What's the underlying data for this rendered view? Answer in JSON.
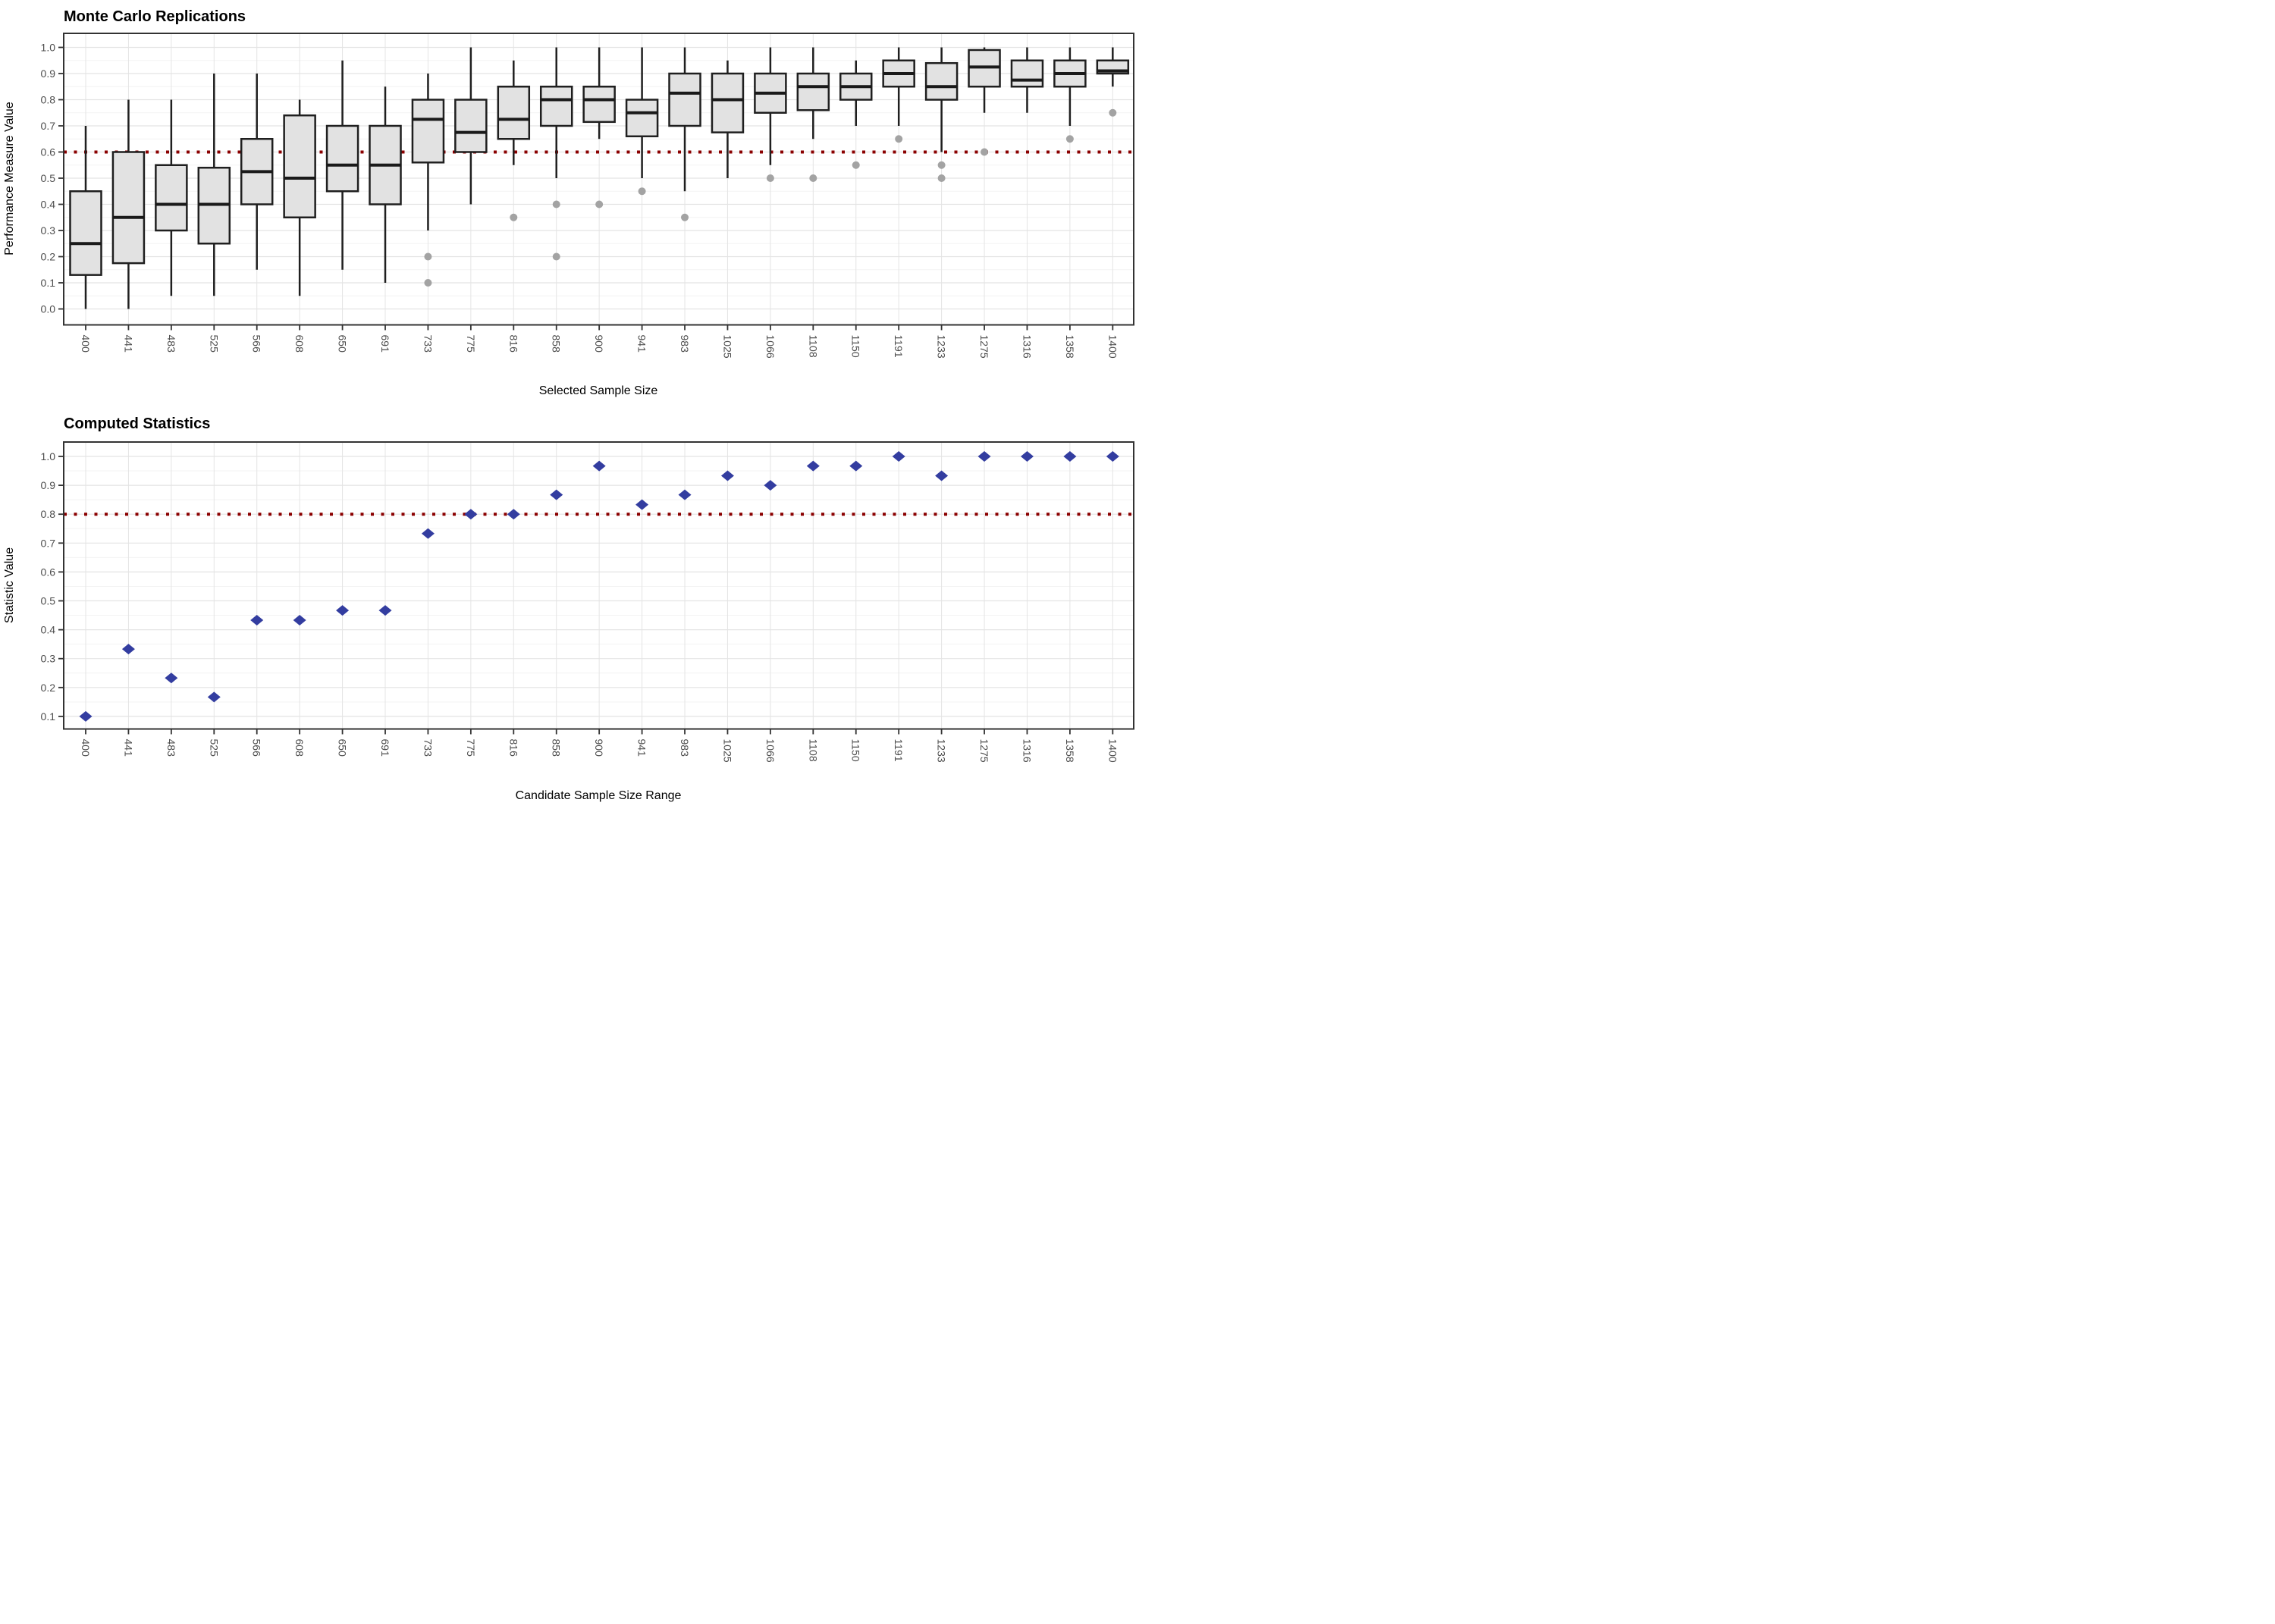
{
  "chart_data": [
    {
      "type": "boxplot",
      "title": "Monte Carlo Replications",
      "xlabel": "Selected Sample Size",
      "ylabel": "Performance Measure Value",
      "categories": [
        "400",
        "441",
        "483",
        "525",
        "566",
        "608",
        "650",
        "691",
        "733",
        "775",
        "816",
        "858",
        "900",
        "941",
        "983",
        "1025",
        "1066",
        "1108",
        "1150",
        "1191",
        "1233",
        "1275",
        "1316",
        "1358",
        "1400"
      ],
      "y_ticks": [
        "0.0",
        "0.1",
        "0.2",
        "0.3",
        "0.4",
        "0.5",
        "0.6",
        "0.7",
        "0.8",
        "0.9",
        "1.0"
      ],
      "ylim": [
        -0.06,
        1.05
      ],
      "grid": "on",
      "reference_line": {
        "value": 0.6,
        "color": "#8B0000",
        "pattern": "dotted"
      },
      "boxes": [
        {
          "x": "400",
          "min": 0.0,
          "q1": 0.13,
          "median": 0.25,
          "q3": 0.45,
          "max": 0.7,
          "outliers": []
        },
        {
          "x": "441",
          "min": 0.0,
          "q1": 0.175,
          "median": 0.35,
          "q3": 0.6,
          "max": 0.8,
          "outliers": []
        },
        {
          "x": "483",
          "min": 0.05,
          "q1": 0.3,
          "median": 0.4,
          "q3": 0.55,
          "max": 0.8,
          "outliers": []
        },
        {
          "x": "525",
          "min": 0.05,
          "q1": 0.25,
          "median": 0.4,
          "q3": 0.54,
          "max": 0.9,
          "outliers": []
        },
        {
          "x": "566",
          "min": 0.15,
          "q1": 0.4,
          "median": 0.525,
          "q3": 0.65,
          "max": 0.9,
          "outliers": []
        },
        {
          "x": "608",
          "min": 0.05,
          "q1": 0.35,
          "median": 0.5,
          "q3": 0.74,
          "max": 0.8,
          "outliers": []
        },
        {
          "x": "650",
          "min": 0.15,
          "q1": 0.45,
          "median": 0.55,
          "q3": 0.7,
          "max": 0.95,
          "outliers": []
        },
        {
          "x": "691",
          "min": 0.1,
          "q1": 0.4,
          "median": 0.55,
          "q3": 0.7,
          "max": 0.85,
          "outliers": []
        },
        {
          "x": "733",
          "min": 0.3,
          "q1": 0.56,
          "median": 0.725,
          "q3": 0.8,
          "max": 0.9,
          "outliers": [
            0.2,
            0.1
          ]
        },
        {
          "x": "775",
          "min": 0.4,
          "q1": 0.6,
          "median": 0.675,
          "q3": 0.8,
          "max": 1.0,
          "outliers": []
        },
        {
          "x": "816",
          "min": 0.55,
          "q1": 0.65,
          "median": 0.725,
          "q3": 0.85,
          "max": 0.95,
          "outliers": [
            0.35
          ]
        },
        {
          "x": "858",
          "min": 0.5,
          "q1": 0.7,
          "median": 0.8,
          "q3": 0.85,
          "max": 1.0,
          "outliers": [
            0.4,
            0.2
          ]
        },
        {
          "x": "900",
          "min": 0.65,
          "q1": 0.715,
          "median": 0.8,
          "q3": 0.85,
          "max": 1.0,
          "outliers": [
            0.4
          ]
        },
        {
          "x": "941",
          "min": 0.5,
          "q1": 0.66,
          "median": 0.75,
          "q3": 0.8,
          "max": 1.0,
          "outliers": [
            0.45
          ]
        },
        {
          "x": "983",
          "min": 0.45,
          "q1": 0.7,
          "median": 0.825,
          "q3": 0.9,
          "max": 1.0,
          "outliers": [
            0.35
          ]
        },
        {
          "x": "1025",
          "min": 0.5,
          "q1": 0.675,
          "median": 0.8,
          "q3": 0.9,
          "max": 0.95,
          "outliers": []
        },
        {
          "x": "1066",
          "min": 0.55,
          "q1": 0.75,
          "median": 0.825,
          "q3": 0.9,
          "max": 1.0,
          "outliers": [
            0.5
          ]
        },
        {
          "x": "1108",
          "min": 0.65,
          "q1": 0.76,
          "median": 0.85,
          "q3": 0.9,
          "max": 1.0,
          "outliers": [
            0.5
          ]
        },
        {
          "x": "1150",
          "min": 0.7,
          "q1": 0.8,
          "median": 0.85,
          "q3": 0.9,
          "max": 0.95,
          "outliers": [
            0.55
          ]
        },
        {
          "x": "1191",
          "min": 0.7,
          "q1": 0.85,
          "median": 0.9,
          "q3": 0.95,
          "max": 1.0,
          "outliers": [
            0.65
          ]
        },
        {
          "x": "1233",
          "min": 0.6,
          "q1": 0.8,
          "median": 0.85,
          "q3": 0.94,
          "max": 1.0,
          "outliers": [
            0.55,
            0.5
          ]
        },
        {
          "x": "1275",
          "min": 0.75,
          "q1": 0.85,
          "median": 0.925,
          "q3": 0.99,
          "max": 1.0,
          "outliers": [
            0.6
          ]
        },
        {
          "x": "1316",
          "min": 0.75,
          "q1": 0.85,
          "median": 0.875,
          "q3": 0.95,
          "max": 1.0,
          "outliers": []
        },
        {
          "x": "1358",
          "min": 0.7,
          "q1": 0.85,
          "median": 0.9,
          "q3": 0.95,
          "max": 1.0,
          "outliers": [
            0.65
          ]
        },
        {
          "x": "1400",
          "min": 0.85,
          "q1": 0.9,
          "median": 0.91,
          "q3": 0.95,
          "max": 1.0,
          "outliers": [
            0.75
          ]
        }
      ]
    },
    {
      "type": "scatter",
      "title": "Computed Statistics",
      "xlabel": "Candidate Sample Size Range",
      "ylabel": "Statistic Value",
      "categories": [
        "400",
        "441",
        "483",
        "525",
        "566",
        "608",
        "650",
        "691",
        "733",
        "775",
        "816",
        "858",
        "900",
        "941",
        "983",
        "1025",
        "1066",
        "1108",
        "1150",
        "1191",
        "1233",
        "1275",
        "1316",
        "1358",
        "1400"
      ],
      "y_ticks": [
        "0.1",
        "0.2",
        "0.3",
        "0.4",
        "0.5",
        "0.6",
        "0.7",
        "0.8",
        "0.9",
        "1.0"
      ],
      "ylim": [
        0.055,
        1.05
      ],
      "grid": "on",
      "reference_line": {
        "value": 0.8,
        "color": "#8B0000",
        "pattern": "dotted"
      },
      "values": [
        0.1,
        0.333,
        0.233,
        0.167,
        0.433,
        0.433,
        0.467,
        0.467,
        0.733,
        0.8,
        0.8,
        0.867,
        0.967,
        0.833,
        0.867,
        0.933,
        0.9,
        0.967,
        0.967,
        1.0,
        0.933,
        1.0,
        1.0,
        1.0,
        1.0
      ]
    }
  ],
  "colors": {
    "box_fill": "#e2e2e2",
    "box_stroke": "#1f1f1f",
    "median": "#1a1a1a",
    "outlier": "#a3a3a3",
    "reference": "#8B0000",
    "diamond": "#333da0",
    "grid_major": "#e4e4e4",
    "grid_minor": "#f3f3f3",
    "panel_border": "#333333",
    "axis_text": "#4d4d4d",
    "tick_mark": "#333333"
  }
}
